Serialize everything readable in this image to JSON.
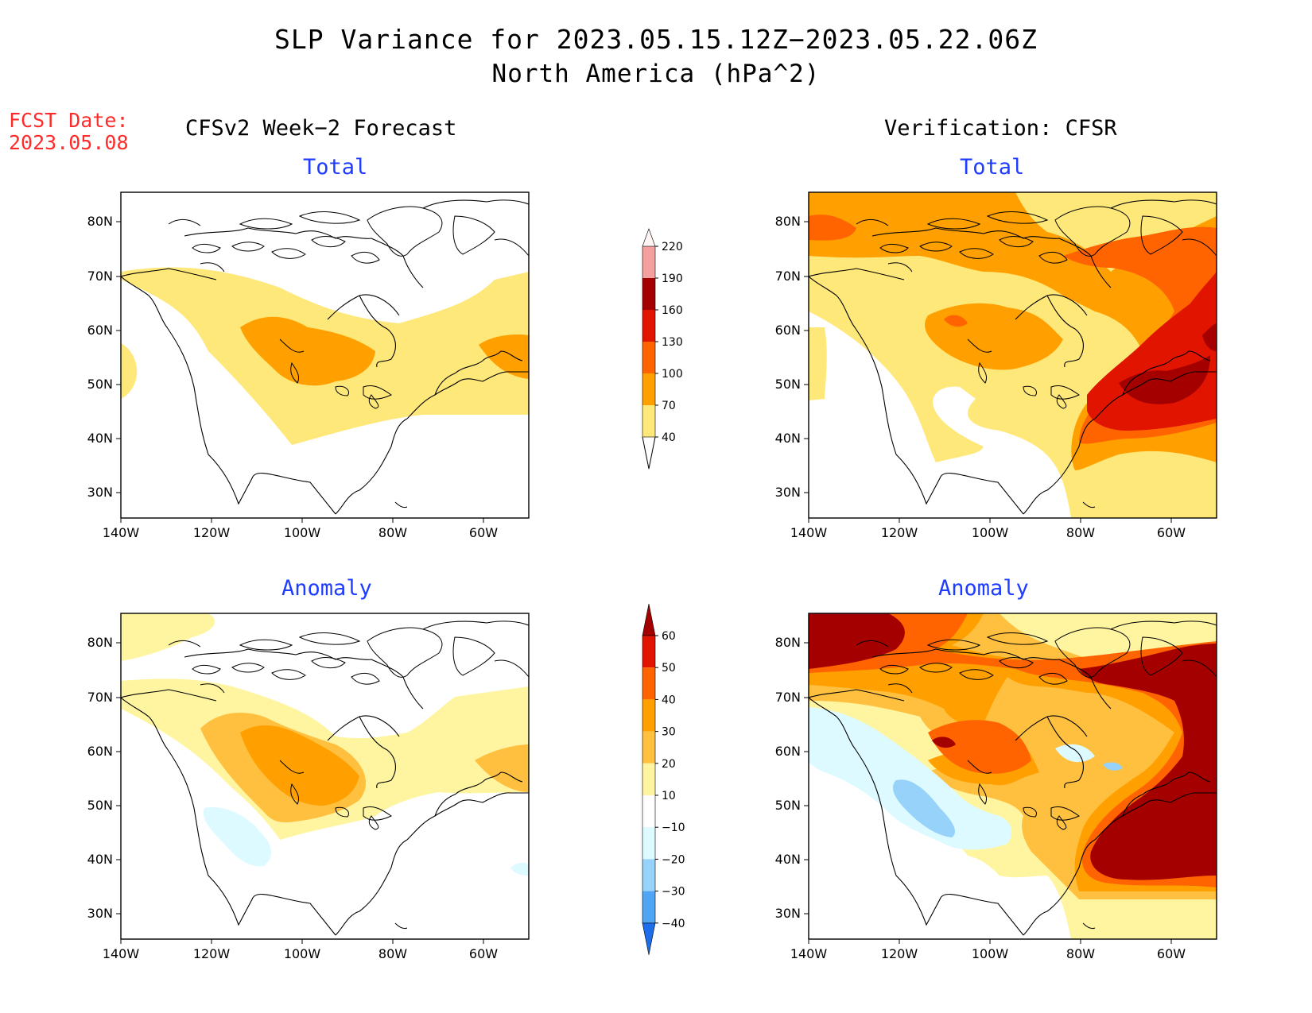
{
  "title": "SLP Variance for 2023.05.15.12Z−2023.05.22.06Z",
  "subtitle": "North America (hPa^2)",
  "fcst": {
    "label": "FCST Date:",
    "date": "2023.05.08"
  },
  "columns": {
    "left": "CFSv2 Week−2 Forecast",
    "right": "Verification: CFSR"
  },
  "panel_titles": {
    "total": "Total",
    "anomaly": "Anomaly"
  },
  "axes": {
    "lat_labels": [
      "80N",
      "70N",
      "60N",
      "50N",
      "40N",
      "30N"
    ],
    "lon_labels": [
      "140W",
      "120W",
      "100W",
      "80W",
      "60W"
    ]
  },
  "colorbar_total": {
    "levels": [
      "40",
      "70",
      "100",
      "130",
      "160",
      "190",
      "220"
    ],
    "colors": [
      "#ffe87a",
      "#ffa000",
      "#ff6400",
      "#e11400",
      "#a50000",
      "#f5a0a0",
      "#ffe6e6"
    ]
  },
  "colorbar_anomaly": {
    "levels": [
      "60",
      "50",
      "40",
      "30",
      "20",
      "10",
      "−10",
      "−20",
      "−30",
      "−40"
    ],
    "colors": [
      "#a50000",
      "#e11400",
      "#ff6400",
      "#ffa000",
      "#ffc040",
      "#fff5a0",
      "#ffffff",
      "#dcfaff",
      "#96d2fa",
      "#50a5f5",
      "#1e6eeb"
    ]
  },
  "map_colors": {
    "yellow": "#ffe87a",
    "orange": "#ffa000",
    "dkorange": "#ff6400",
    "red": "#e11400",
    "maroon": "#a50000",
    "lightyellow": "#fff5a0",
    "lightorange": "#ffc040",
    "cyan": "#dcfaff",
    "lightblue": "#96d2fa"
  }
}
